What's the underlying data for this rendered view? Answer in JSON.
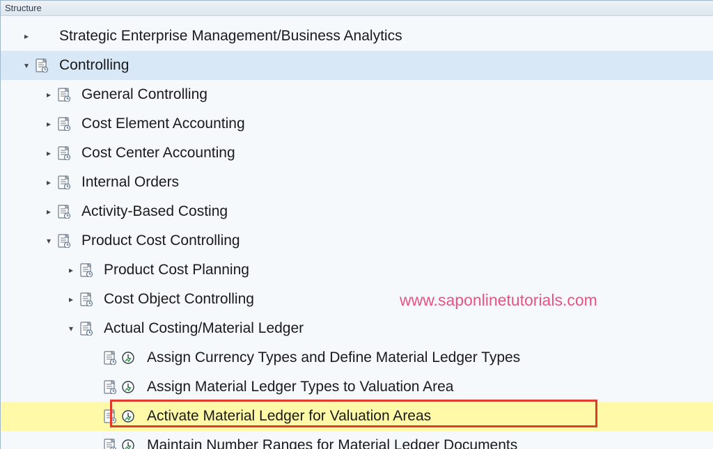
{
  "panel": {
    "title": "Structure"
  },
  "watermark": "www.saponlinetutorials.com",
  "colors": {
    "background": "#f5f9fc",
    "selected_row": "#d9e8f7",
    "highlighted_row": "#fff9a8",
    "red_box_border": "#e23b2e",
    "watermark_text": "#e95383",
    "header_border": "#c9d4de",
    "text": "#1a1a1a"
  },
  "tree": [
    {
      "id": "sem",
      "indent": 28,
      "expander": "collapsed",
      "doc": false,
      "clock": false,
      "label": "Strategic Enterprise Management/Business Analytics",
      "selected": false,
      "highlighted": false
    },
    {
      "id": "ctrl",
      "indent": 28,
      "expander": "expanded",
      "doc": true,
      "clock": false,
      "label": "Controlling",
      "selected": true,
      "highlighted": false
    },
    {
      "id": "gc",
      "indent": 60,
      "expander": "collapsed",
      "doc": true,
      "clock": false,
      "label": "General Controlling",
      "selected": false,
      "highlighted": false
    },
    {
      "id": "cea",
      "indent": 60,
      "expander": "collapsed",
      "doc": true,
      "clock": false,
      "label": "Cost Element Accounting",
      "selected": false,
      "highlighted": false
    },
    {
      "id": "cca",
      "indent": 60,
      "expander": "collapsed",
      "doc": true,
      "clock": false,
      "label": "Cost Center Accounting",
      "selected": false,
      "highlighted": false
    },
    {
      "id": "io",
      "indent": 60,
      "expander": "collapsed",
      "doc": true,
      "clock": false,
      "label": "Internal Orders",
      "selected": false,
      "highlighted": false
    },
    {
      "id": "abc",
      "indent": 60,
      "expander": "collapsed",
      "doc": true,
      "clock": false,
      "label": "Activity-Based Costing",
      "selected": false,
      "highlighted": false
    },
    {
      "id": "pcc",
      "indent": 60,
      "expander": "expanded",
      "doc": true,
      "clock": false,
      "label": "Product Cost Controlling",
      "selected": false,
      "highlighted": false
    },
    {
      "id": "pcp",
      "indent": 92,
      "expander": "collapsed",
      "doc": true,
      "clock": false,
      "label": "Product Cost Planning",
      "selected": false,
      "highlighted": false
    },
    {
      "id": "coc",
      "indent": 92,
      "expander": "collapsed",
      "doc": true,
      "clock": false,
      "label": "Cost Object Controlling",
      "selected": false,
      "highlighted": false
    },
    {
      "id": "acml",
      "indent": 92,
      "expander": "expanded",
      "doc": true,
      "clock": false,
      "label": "Actual Costing/Material Ledger",
      "selected": false,
      "highlighted": false
    },
    {
      "id": "act1",
      "indent": 126,
      "expander": "none",
      "doc": true,
      "clock": true,
      "label": "Assign Currency Types and Define Material Ledger Types",
      "selected": false,
      "highlighted": false,
      "leaf": true
    },
    {
      "id": "act2",
      "indent": 126,
      "expander": "none",
      "doc": true,
      "clock": true,
      "label": "Assign Material Ledger Types to Valuation Area",
      "selected": false,
      "highlighted": false,
      "leaf": true
    },
    {
      "id": "act3",
      "indent": 126,
      "expander": "none",
      "doc": true,
      "clock": true,
      "label": "Activate Material Ledger for Valuation Areas",
      "selected": false,
      "highlighted": true,
      "leaf": true
    },
    {
      "id": "act4",
      "indent": 126,
      "expander": "none",
      "doc": true,
      "clock": true,
      "label": "Maintain Number Ranges for Material Ledger Documents",
      "selected": false,
      "highlighted": false,
      "leaf": true
    }
  ]
}
